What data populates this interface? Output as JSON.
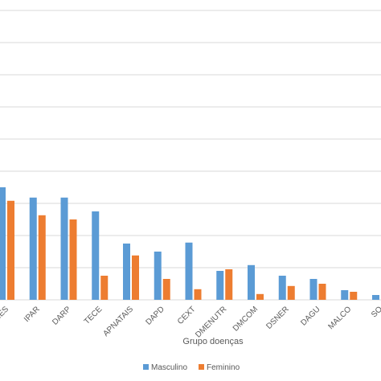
{
  "chart_data": {
    "type": "bar",
    "x_label": "Grupo doenças",
    "categories": [
      "RES",
      "IPAR",
      "DARP",
      "TECE",
      "APNATAIS",
      "DAPD",
      "CEXT",
      "DMENUTR",
      "DMCOM",
      "DSNER",
      "DAGU",
      "MALCO",
      "SO"
    ],
    "series": [
      {
        "name": "Masculino",
        "color": "#5b9bd5",
        "values": [
          3.5,
          3.18,
          3.18,
          2.75,
          1.75,
          1.5,
          1.78,
          0.9,
          1.08,
          0.75,
          0.65,
          0.3,
          0.15
        ]
      },
      {
        "name": "Feminino",
        "color": "#ed7d31",
        "values": [
          3.08,
          2.63,
          2.5,
          0.75,
          1.38,
          0.65,
          0.33,
          0.95,
          0.18,
          0.43,
          0.5,
          0.25,
          null
        ]
      }
    ],
    "ylim": [
      0,
      9
    ],
    "yticks": [
      0,
      1,
      2,
      3,
      4,
      5,
      6,
      7,
      8,
      9
    ],
    "grid": true,
    "legend": "bottom"
  }
}
